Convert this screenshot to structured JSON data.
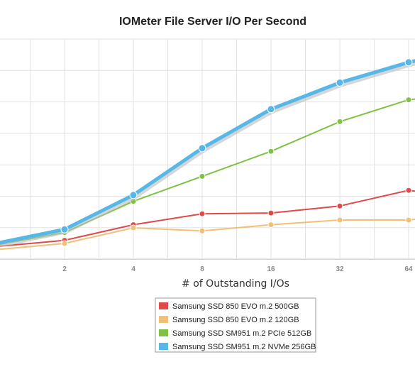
{
  "chart_data": {
    "type": "line",
    "title": "IOMeter File Server I/O Per Second",
    "xlabel": "# of Outstanding I/Os",
    "ylabel": "",
    "x_ticks": [
      "2",
      "4",
      "8",
      "16",
      "32",
      "64"
    ],
    "x_log2": [
      0,
      1,
      2,
      3,
      4,
      5,
      6,
      6.2
    ],
    "y_gridlines": 8,
    "grid": true,
    "legend_position": "bottom-center",
    "series": [
      {
        "name": "Samsung SSD 850 EVO m.2 500GB",
        "color": "#e04a48",
        "values": [
          0.08,
          0.12,
          0.22,
          0.29,
          0.295,
          0.34,
          0.44,
          0.43
        ]
      },
      {
        "name": "Samsung SSD 850 EVO m.2 120GB",
        "color": "#f0c077",
        "values": [
          0.06,
          0.1,
          0.2,
          0.18,
          0.22,
          0.25,
          0.25,
          0.26
        ]
      },
      {
        "name": "Samsung SSD SM951 m.2 PCIe 512GB",
        "color": "#7dc242",
        "values": [
          0.09,
          0.17,
          0.37,
          0.53,
          0.69,
          0.88,
          1.02,
          1.03
        ]
      },
      {
        "name": "Samsung SSD SM951 m.2 NVMe 256GB",
        "color": "#55b8e8",
        "values": [
          0.1,
          0.19,
          0.41,
          0.71,
          0.96,
          1.13,
          1.26,
          1.28
        ]
      }
    ]
  }
}
